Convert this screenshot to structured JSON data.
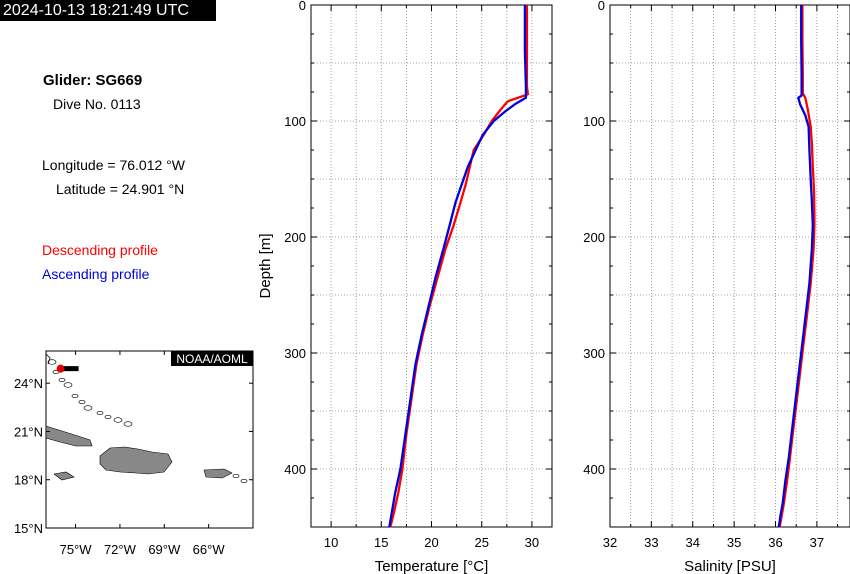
{
  "header": {
    "timestamp": "2024-10-13 18:21:49 UTC"
  },
  "info": {
    "glider": "Glider: SG669",
    "dive": "Dive No. 0113",
    "longitude": "Longitude = 76.012 °W",
    "latitude": "Latitude = 24.901 °N",
    "descending_label": "Descending profile",
    "ascending_label": "Ascending profile"
  },
  "colors": {
    "descending": "#ff0000",
    "ascending": "#0000dd",
    "land": "#888888",
    "glider_marker": "#e00000"
  },
  "map": {
    "badge": "NOAA/AOML",
    "lat_labels": [
      "24°N",
      "21°N",
      "18°N",
      "15°N"
    ],
    "lon_labels": [
      "75°W",
      "72°W",
      "69°W",
      "66°W"
    ],
    "lat_values": [
      24,
      21,
      18,
      15
    ],
    "lon_values": [
      -75,
      -72,
      -69,
      -66
    ],
    "lon_range": [
      -77,
      -63
    ],
    "lat_range": [
      15,
      26
    ],
    "glider_position": {
      "lon": -76.012,
      "lat": 24.901
    }
  },
  "chart_data": [
    {
      "type": "line",
      "xlabel": "Temperature [°C]",
      "ylabel": "Depth [m]",
      "xlim": [
        8,
        32
      ],
      "ylim": [
        0,
        450
      ],
      "y_inverted": true,
      "grid": true,
      "xticks": [
        "10",
        "15",
        "20",
        "25",
        "30"
      ],
      "xtick_values": [
        10,
        15,
        20,
        25,
        30
      ],
      "yticks": [
        "0",
        "100",
        "200",
        "300",
        "400"
      ],
      "ytick_values": [
        0,
        100,
        200,
        300,
        400
      ],
      "series": [
        {
          "name": "Descending profile",
          "x": [
            29.5,
            29.5,
            29.5,
            29.6,
            27.6,
            26.9,
            26.0,
            25.2,
            24.2,
            23.8,
            23.4,
            22.9,
            22.2,
            21.4,
            20.6,
            19.8,
            19.1,
            18.5,
            18.0,
            17.5,
            17.1,
            16.7,
            16.2,
            15.9
          ],
          "y": [
            0,
            40,
            70,
            77,
            83,
            90,
            100,
            112,
            125,
            140,
            155,
            170,
            190,
            210,
            235,
            260,
            285,
            310,
            340,
            370,
            400,
            420,
            440,
            450
          ]
        },
        {
          "name": "Ascending profile",
          "x": [
            29.3,
            29.3,
            29.4,
            29.4,
            28.4,
            27.3,
            26.2,
            25.1,
            24.4,
            23.6,
            23.0,
            22.4,
            21.8,
            21.2,
            20.4,
            19.7,
            19.0,
            18.4,
            17.9,
            17.4,
            16.9,
            16.4,
            16.0,
            15.8
          ],
          "y": [
            0,
            40,
            70,
            80,
            85,
            92,
            100,
            112,
            125,
            140,
            155,
            170,
            190,
            210,
            235,
            260,
            285,
            310,
            340,
            370,
            400,
            420,
            440,
            450
          ]
        }
      ]
    },
    {
      "type": "line",
      "xlabel": "Salinity [PSU]",
      "ylabel": "",
      "xlim": [
        32,
        37.8
      ],
      "ylim": [
        0,
        450
      ],
      "y_inverted": true,
      "grid": true,
      "xticks": [
        "32",
        "33",
        "34",
        "35",
        "36",
        "37"
      ],
      "xtick_values": [
        32,
        33,
        34,
        35,
        36,
        37
      ],
      "yticks": [
        "0",
        "100",
        "200",
        "300",
        "400"
      ],
      "ytick_values": [
        0,
        100,
        200,
        300,
        400
      ],
      "series": [
        {
          "name": "Descending profile",
          "x": [
            36.65,
            36.65,
            36.66,
            36.66,
            36.72,
            36.78,
            36.85,
            36.88,
            36.9,
            36.93,
            36.94,
            36.94,
            36.92,
            36.85,
            36.75,
            36.65,
            36.55,
            36.45,
            36.35,
            36.28,
            36.2,
            36.15,
            36.1
          ],
          "y": [
            0,
            30,
            60,
            76,
            80,
            90,
            105,
            120,
            140,
            160,
            180,
            190,
            210,
            240,
            270,
            300,
            330,
            360,
            390,
            410,
            430,
            440,
            450
          ]
        },
        {
          "name": "Ascending profile",
          "x": [
            36.62,
            36.62,
            36.63,
            36.63,
            36.55,
            36.6,
            36.72,
            36.8,
            36.82,
            36.85,
            36.88,
            36.9,
            36.88,
            36.82,
            36.72,
            36.62,
            36.52,
            36.42,
            36.32,
            36.24,
            36.17,
            36.12,
            36.08
          ],
          "y": [
            0,
            30,
            60,
            78,
            80,
            86,
            95,
            105,
            125,
            150,
            170,
            190,
            210,
            240,
            270,
            300,
            330,
            360,
            390,
            410,
            430,
            440,
            450
          ]
        }
      ]
    }
  ]
}
